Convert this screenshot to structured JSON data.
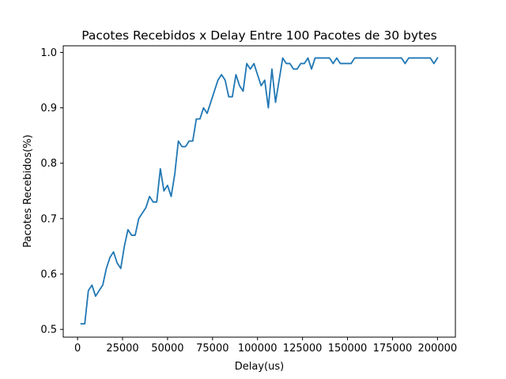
{
  "chart_data": {
    "type": "line",
    "title": "Pacotes Recebidos x Delay Entre 100 Pacotes de 30 bytes",
    "xlabel": "Delay(us)",
    "ylabel": "Pacotes Recebidos(%)",
    "xlim": [
      -7950,
      209950
    ],
    "ylim": [
      0.486,
      1.012
    ],
    "xticks": [
      0,
      25000,
      50000,
      75000,
      100000,
      125000,
      150000,
      175000,
      200000
    ],
    "yticks": [
      0.5,
      0.6,
      0.7,
      0.8,
      0.9,
      1.0
    ],
    "ytick_labels": [
      "0.5",
      "0.6",
      "0.7",
      "0.8",
      "0.9",
      "1.0"
    ],
    "grid": false,
    "color": "#1f77b4",
    "series": [
      {
        "x": [
          2000,
          4000,
          6000,
          8000,
          10000,
          12000,
          14000,
          16000,
          18000,
          20000,
          22000,
          24000,
          26000,
          28000,
          30000,
          32000,
          34000,
          36000,
          38000,
          40000,
          42000,
          44000,
          46000,
          48000,
          50000,
          52000,
          54000,
          56000,
          58000,
          60000,
          62000,
          64000,
          66000,
          68000,
          70000,
          72000,
          74000,
          76000,
          78000,
          80000,
          82000,
          84000,
          86000,
          88000,
          90000,
          92000,
          94000,
          96000,
          98000,
          100000,
          102000,
          104000,
          106000,
          108000,
          110000,
          112000,
          114000,
          116000,
          118000,
          120000,
          122000,
          124000,
          126000,
          128000,
          130000,
          132000,
          134000,
          136000,
          138000,
          140000,
          142000,
          144000,
          146000,
          148000,
          150000,
          152000,
          154000,
          156000,
          158000,
          160000,
          162000,
          164000,
          166000,
          168000,
          170000,
          172000,
          174000,
          176000,
          178000,
          180000,
          182000,
          184000,
          186000,
          188000,
          190000,
          192000,
          194000,
          196000,
          198000,
          200000
        ],
        "y": [
          0.51,
          0.51,
          0.57,
          0.58,
          0.56,
          0.57,
          0.58,
          0.61,
          0.63,
          0.64,
          0.62,
          0.61,
          0.65,
          0.68,
          0.67,
          0.67,
          0.7,
          0.71,
          0.72,
          0.74,
          0.73,
          0.73,
          0.79,
          0.75,
          0.76,
          0.74,
          0.78,
          0.84,
          0.83,
          0.83,
          0.84,
          0.84,
          0.88,
          0.88,
          0.9,
          0.89,
          0.91,
          0.93,
          0.95,
          0.96,
          0.95,
          0.92,
          0.92,
          0.96,
          0.94,
          0.93,
          0.98,
          0.97,
          0.98,
          0.96,
          0.94,
          0.95,
          0.9,
          0.97,
          0.91,
          0.95,
          0.99,
          0.98,
          0.98,
          0.97,
          0.97,
          0.98,
          0.98,
          0.99,
          0.97,
          0.99,
          0.99,
          0.99,
          0.99,
          0.99,
          0.98,
          0.99,
          0.98,
          0.98,
          0.98,
          0.98,
          0.99,
          0.99,
          0.99,
          0.99,
          0.99,
          0.99,
          0.99,
          0.99,
          0.99,
          0.99,
          0.99,
          0.99,
          0.99,
          0.99,
          0.98,
          0.99,
          0.99,
          0.99,
          0.99,
          0.99,
          0.99,
          0.99,
          0.98,
          0.99
        ]
      }
    ]
  }
}
